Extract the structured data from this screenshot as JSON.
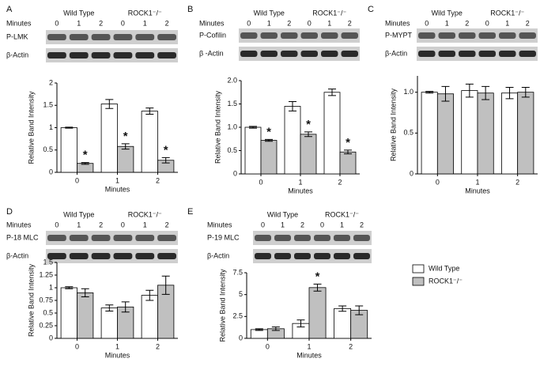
{
  "chart_data": [
    {
      "type": "bar",
      "panel": "A",
      "blot": {
        "header": "Minutes",
        "lanes": [
          "0",
          "1",
          "2",
          "0",
          "1",
          "2"
        ],
        "rows": [
          "P-LMK",
          "β-Actin"
        ]
      },
      "categories": [
        "0",
        "1",
        "2"
      ],
      "x_label": "Minutes",
      "y_label": "Relative Band Intensity",
      "series": [
        {
          "name": "Wild Type",
          "color": "#ffffff",
          "values": [
            1.0,
            1.53,
            1.37
          ],
          "errors": [
            0.01,
            0.1,
            0.07
          ],
          "annotations": [
            null,
            null,
            null
          ]
        },
        {
          "name": "ROCK1⁻/⁻",
          "color": "#c0c0c0",
          "values": [
            0.2,
            0.58,
            0.27
          ],
          "errors": [
            0.02,
            0.06,
            0.06
          ],
          "annotations": [
            "*",
            "*",
            "*"
          ]
        }
      ],
      "ylim": [
        0,
        2
      ],
      "yticks": [
        0,
        0.5,
        1,
        1.5,
        2
      ]
    },
    {
      "type": "bar",
      "panel": "B",
      "blot": {
        "header": "Minutes",
        "lanes": [
          "0",
          "1",
          "2",
          "0",
          "1",
          "2"
        ],
        "rows": [
          "P-Cofilin",
          "β -Actin"
        ]
      },
      "categories": [
        "0",
        "1",
        "2"
      ],
      "x_label": "Minutes",
      "y_label": "Relative Band Intensity",
      "series": [
        {
          "name": "Wild Type",
          "color": "#ffffff",
          "values": [
            1.0,
            1.45,
            1.75
          ],
          "errors": [
            0.02,
            0.1,
            0.07
          ],
          "annotations": [
            null,
            null,
            null
          ]
        },
        {
          "name": "ROCK1⁻/⁻",
          "color": "#c0c0c0",
          "values": [
            0.72,
            0.85,
            0.47
          ],
          "errors": [
            0.02,
            0.05,
            0.04
          ],
          "annotations": [
            "*",
            "*",
            "*"
          ]
        }
      ],
      "ylim": [
        0,
        2
      ],
      "yticks": [
        0,
        0.5,
        {
          "value": 1,
          "label": "1.0"
        },
        1.5,
        {
          "value": 2,
          "label": "2.0"
        }
      ]
    },
    {
      "type": "bar",
      "panel": "C",
      "blot": {
        "header": "Minutes",
        "lanes": [
          "0",
          "1",
          "2",
          "0",
          "1",
          "2"
        ],
        "rows": [
          "P-MYPT",
          "β-Actin"
        ]
      },
      "categories": [
        "0",
        "1",
        "2"
      ],
      "x_label": "Minutes",
      "y_label": "Relative Band Intensity",
      "series": [
        {
          "name": "Wild Type",
          "color": "#ffffff",
          "values": [
            1.0,
            1.02,
            0.99
          ],
          "errors": [
            0.01,
            0.08,
            0.07
          ],
          "annotations": [
            null,
            null,
            null
          ]
        },
        {
          "name": "ROCK1⁻/⁻",
          "color": "#c0c0c0",
          "values": [
            0.98,
            0.99,
            1.0
          ],
          "errors": [
            0.09,
            0.08,
            0.06
          ],
          "annotations": [
            null,
            null,
            null
          ]
        }
      ],
      "ylim": [
        0,
        1.2
      ],
      "yticks": [
        0,
        0.5,
        {
          "value": 1,
          "label": "1.0"
        }
      ]
    },
    {
      "type": "bar",
      "panel": "D",
      "blot": {
        "header": "Minutes",
        "lanes": [
          "0",
          "1",
          "2",
          "0",
          "1",
          "2"
        ],
        "rows": [
          "P-18 MLC",
          "β-Actin"
        ]
      },
      "categories": [
        "0",
        "1",
        "2"
      ],
      "x_label": "Minutes",
      "y_label": "Relative Band Intensity",
      "series": [
        {
          "name": "Wild Type",
          "color": "#ffffff",
          "values": [
            1.0,
            0.6,
            0.85
          ],
          "errors": [
            0.02,
            0.06,
            0.1
          ],
          "annotations": [
            null,
            null,
            null
          ]
        },
        {
          "name": "ROCK1⁻/⁻",
          "color": "#c0c0c0",
          "values": [
            0.9,
            0.62,
            1.05
          ],
          "errors": [
            0.08,
            0.1,
            0.18
          ],
          "annotations": [
            null,
            null,
            null
          ]
        }
      ],
      "ylim": [
        0,
        1.5
      ],
      "yticks": [
        0,
        0.25,
        0.5,
        0.75,
        1,
        1.25,
        1.5
      ]
    },
    {
      "type": "bar",
      "panel": "E",
      "blot": {
        "header": "Minutes",
        "lanes": [
          "0",
          "1",
          "2",
          "0",
          "1",
          "2"
        ],
        "rows": [
          "P-19 MLC",
          "β-Actin"
        ]
      },
      "categories": [
        "0",
        "1",
        "2"
      ],
      "x_label": "Minutes",
      "y_label": "Relative Band Intensity",
      "series": [
        {
          "name": "Wild Type",
          "color": "#ffffff",
          "values": [
            1.0,
            1.7,
            3.4
          ],
          "errors": [
            0.1,
            0.4,
            0.3
          ],
          "annotations": [
            null,
            null,
            null
          ]
        },
        {
          "name": "ROCK1⁻/⁻",
          "color": "#c0c0c0",
          "values": [
            1.1,
            5.8,
            3.2
          ],
          "errors": [
            0.2,
            0.4,
            0.5
          ],
          "annotations": [
            null,
            "*",
            null
          ]
        }
      ],
      "ylim": [
        0,
        7.5
      ],
      "yticks": [
        0,
        2.5,
        5,
        7.5
      ]
    }
  ]
}
